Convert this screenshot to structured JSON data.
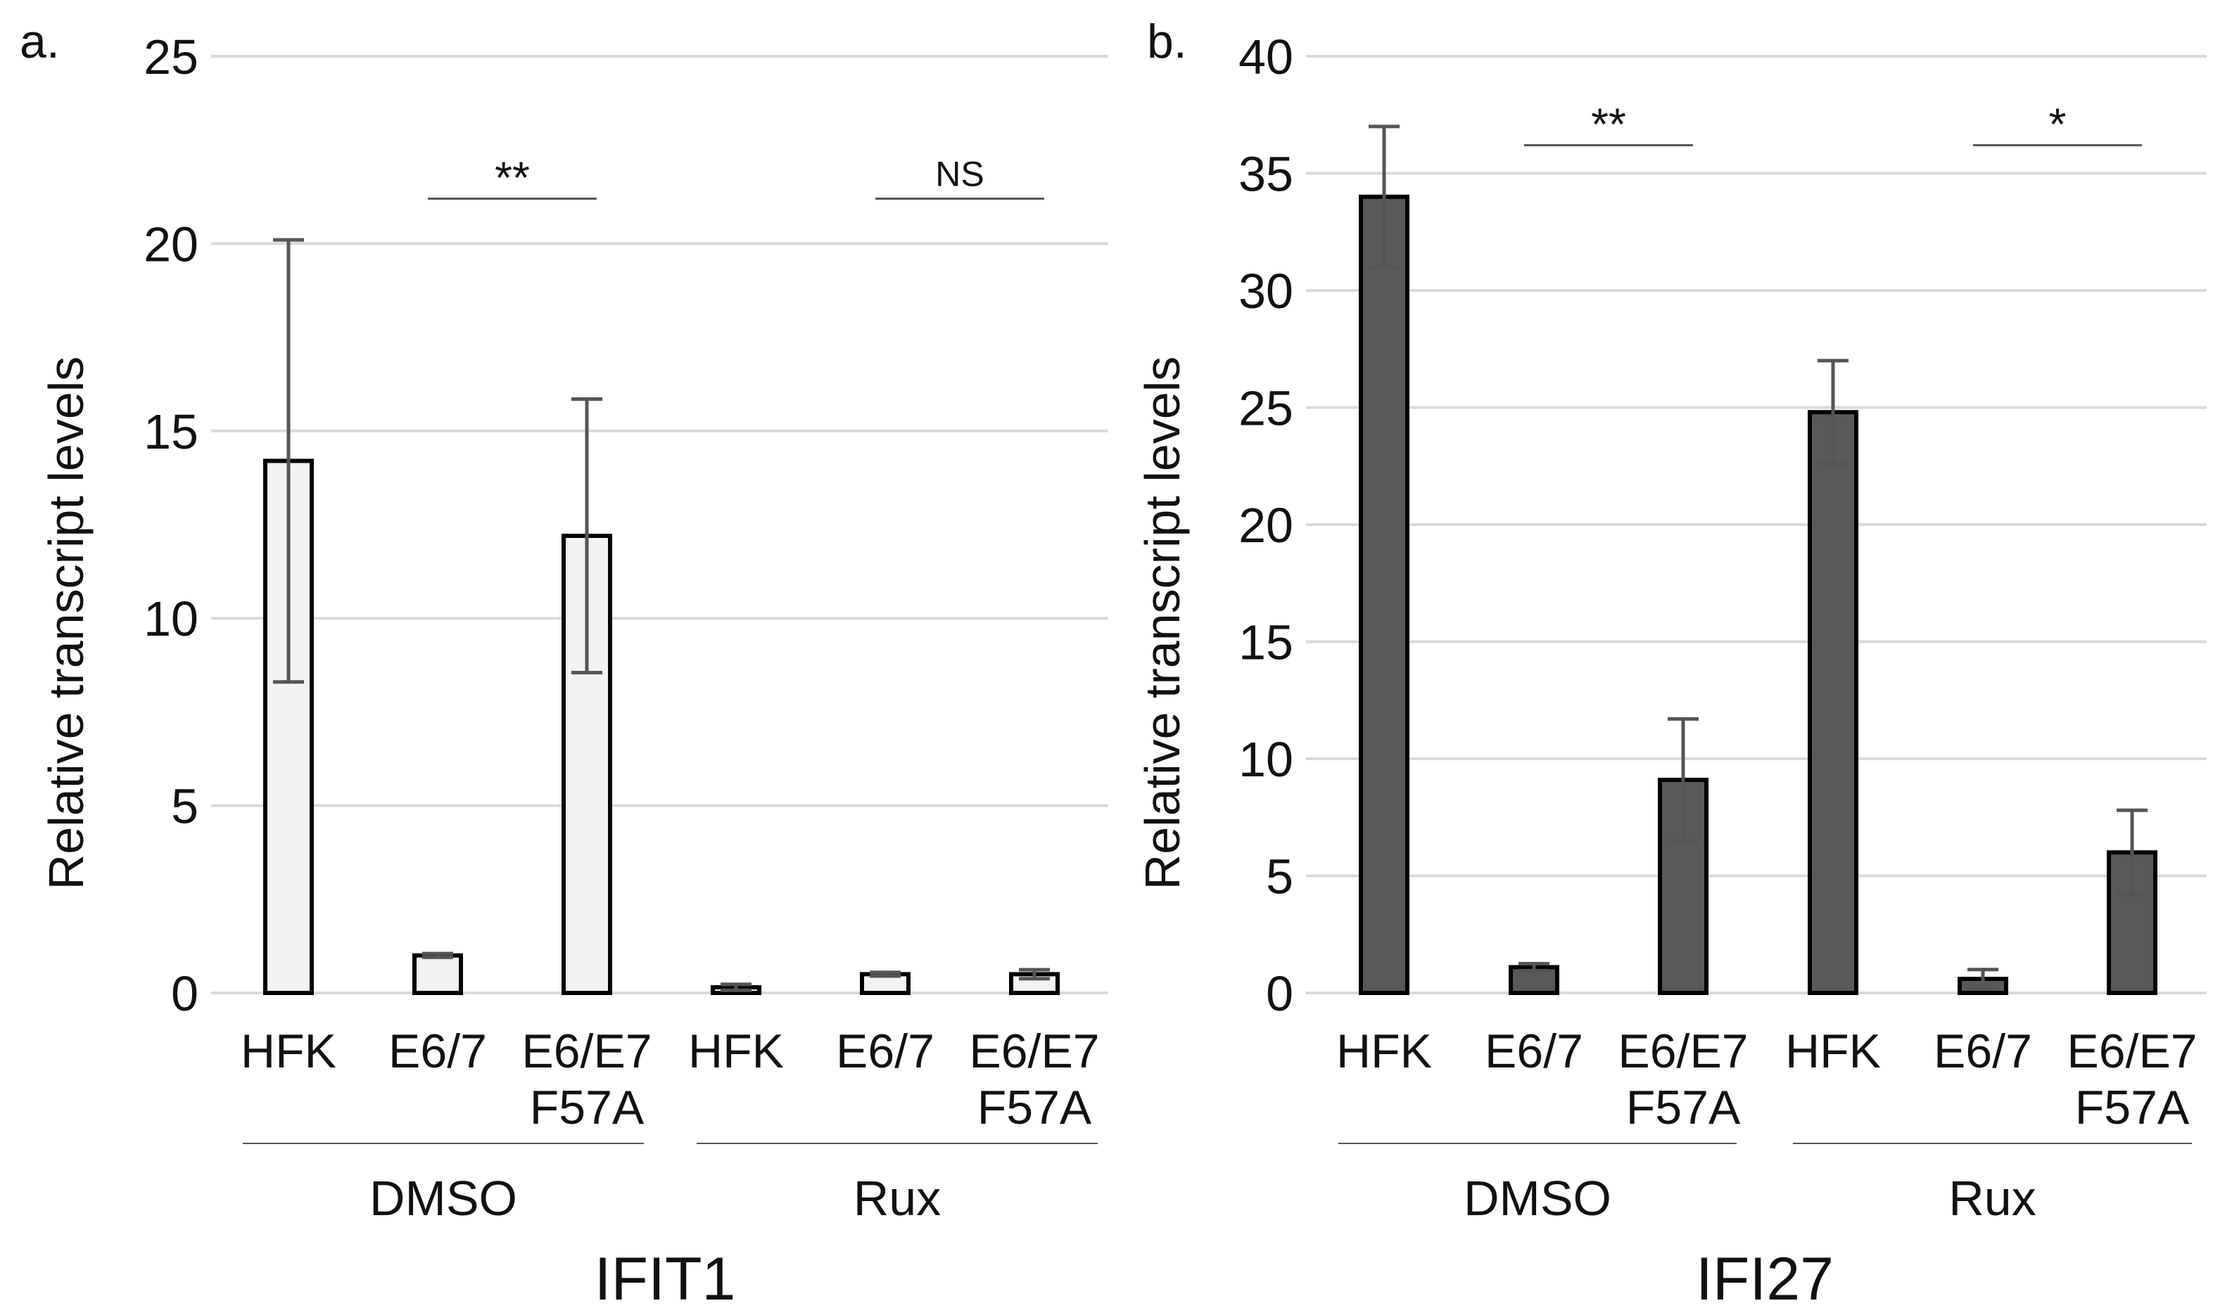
{
  "chart_data": [
    {
      "type": "bar",
      "panel_label": "a.",
      "title": "IFIT1",
      "ylabel": "Relative transcript levels",
      "ylim": [
        0,
        25
      ],
      "yticks": [
        0,
        5,
        10,
        15,
        20,
        25
      ],
      "grid": true,
      "bar_color": "#f2f2f2",
      "bar_edge": "#000000",
      "categories": [
        "HFK",
        "E6/7",
        "E6/E7 F57A",
        "HFK",
        "E6/7",
        "E6/E7 F57A"
      ],
      "category_lines": [
        [
          "HFK"
        ],
        [
          "E6/7"
        ],
        [
          "E6/E7",
          "F57A"
        ],
        [
          "HFK"
        ],
        [
          "E6/7"
        ],
        [
          "E6/E7",
          "F57A"
        ]
      ],
      "groups": [
        {
          "label": "DMSO",
          "categories": [
            0,
            1,
            2
          ]
        },
        {
          "label": "Rux",
          "categories": [
            3,
            4,
            5
          ]
        }
      ],
      "values": [
        14.2,
        1.0,
        12.2,
        0.15,
        0.5,
        0.5
      ],
      "errors": [
        5.9,
        0.05,
        3.65,
        0.08,
        0.05,
        0.12
      ],
      "annotations": [
        {
          "text": "**",
          "from": 1,
          "to": 2,
          "y": 21.2
        },
        {
          "text": "NS",
          "from": 4,
          "to": 5,
          "y": 21.2
        }
      ]
    },
    {
      "type": "bar",
      "panel_label": "b.",
      "title": "IFI27",
      "ylabel": "Relative transcript levels",
      "ylim": [
        0,
        40
      ],
      "yticks": [
        0,
        5,
        10,
        15,
        20,
        25,
        30,
        35,
        40
      ],
      "grid": true,
      "bar_color": "#595959",
      "bar_edge": "#000000",
      "categories": [
        "HFK",
        "E6/7",
        "E6/E7 F57A",
        "HFK",
        "E6/7",
        "E6/E7 F57A"
      ],
      "category_lines": [
        [
          "HFK"
        ],
        [
          "E6/7"
        ],
        [
          "E6/E7",
          "F57A"
        ],
        [
          "HFK"
        ],
        [
          "E6/7"
        ],
        [
          "E6/E7",
          "F57A"
        ]
      ],
      "groups": [
        {
          "label": "DMSO",
          "categories": [
            0,
            1,
            2
          ]
        },
        {
          "label": "Rux",
          "categories": [
            3,
            4,
            5
          ]
        }
      ],
      "values": [
        34.0,
        1.1,
        9.1,
        24.8,
        0.6,
        6.0
      ],
      "errors": [
        3.0,
        0.15,
        2.6,
        2.2,
        0.4,
        1.8
      ],
      "annotations": [
        {
          "text": "**",
          "from": 1,
          "to": 2,
          "y": 36.2
        },
        {
          "text": "*",
          "from": 4,
          "to": 5,
          "y": 36.2
        }
      ]
    }
  ]
}
